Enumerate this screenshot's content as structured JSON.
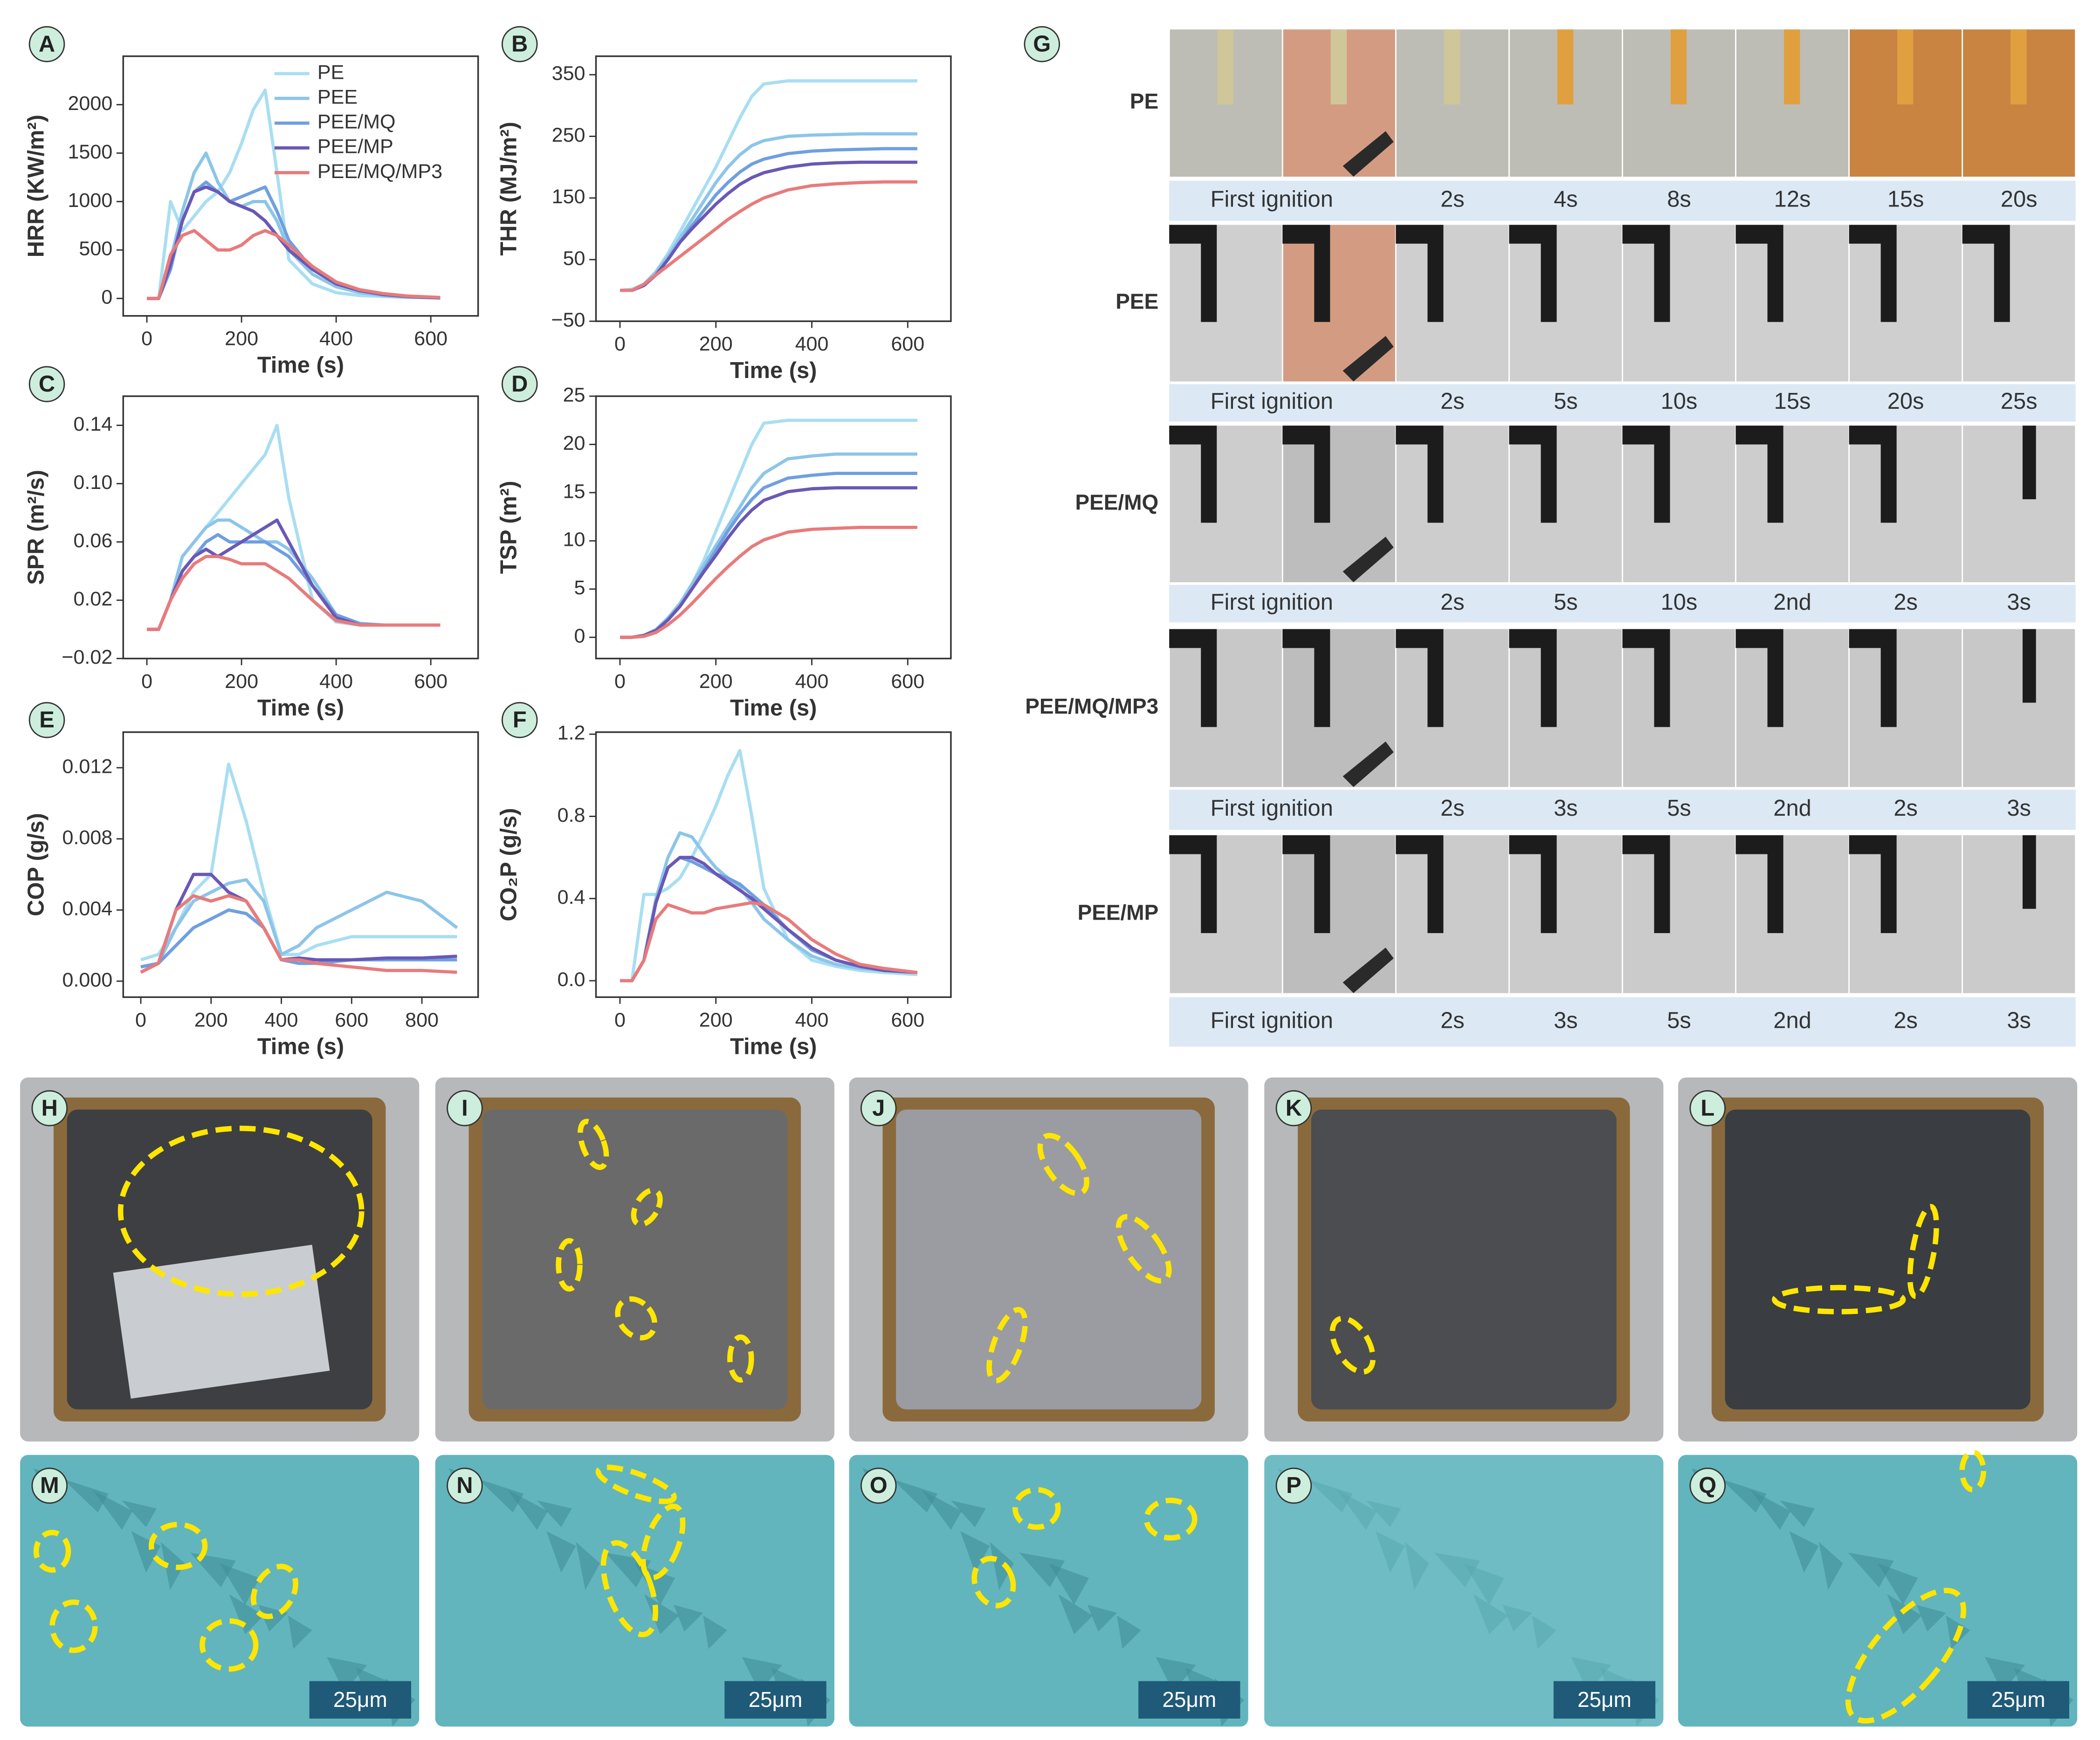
{
  "chart_data": [
    {
      "type": "line",
      "panel": "A",
      "xlabel": "Time (s)",
      "ylabel": "HRR (KW/m²)",
      "x": [
        0,
        25,
        50,
        75,
        100,
        125,
        150,
        175,
        200,
        225,
        250,
        275,
        300,
        350,
        400,
        450,
        500,
        550,
        620
      ],
      "xlim": [
        -50,
        700
      ],
      "xticks": [
        0,
        200,
        400,
        600
      ],
      "ylim": [
        -180,
        2500
      ],
      "yticks": [
        0,
        500,
        1000,
        1500,
        2000
      ],
      "legend": "upper right",
      "series": [
        {
          "name": "PE",
          "color": "#a9def2",
          "values": [
            0,
            0,
            1000,
            700,
            850,
            1000,
            1100,
            1300,
            1600,
            1950,
            2150,
            1300,
            400,
            150,
            60,
            30,
            20,
            10,
            5
          ]
        },
        {
          "name": "PEE",
          "color": "#8cc5e9",
          "values": [
            0,
            0,
            400,
            900,
            1300,
            1500,
            1200,
            1000,
            950,
            1000,
            1000,
            800,
            500,
            250,
            120,
            60,
            30,
            15,
            5
          ]
        },
        {
          "name": "PEE/MQ",
          "color": "#6f9fe0",
          "values": [
            0,
            0,
            300,
            800,
            1100,
            1200,
            1100,
            1000,
            1050,
            1100,
            1150,
            900,
            600,
            300,
            150,
            80,
            40,
            20,
            5
          ]
        },
        {
          "name": "PEE/MP",
          "color": "#6a58b6",
          "values": [
            0,
            0,
            350,
            800,
            1100,
            1150,
            1100,
            1000,
            950,
            900,
            800,
            650,
            500,
            300,
            150,
            80,
            40,
            20,
            5
          ]
        },
        {
          "name": "PEE/MQ/MP3",
          "color": "#e87b7b",
          "values": [
            0,
            0,
            450,
            650,
            700,
            600,
            500,
            500,
            550,
            650,
            700,
            650,
            550,
            330,
            170,
            90,
            50,
            25,
            10
          ]
        }
      ]
    },
    {
      "type": "line",
      "panel": "B",
      "xlabel": "Time (s)",
      "ylabel": "THR (MJ/m²)",
      "x": [
        0,
        25,
        50,
        75,
        100,
        125,
        150,
        175,
        200,
        225,
        250,
        275,
        300,
        350,
        400,
        450,
        500,
        550,
        620
      ],
      "xlim": [
        -50,
        690
      ],
      "xticks": [
        0,
        200,
        400,
        600
      ],
      "ylim": [
        -50,
        380
      ],
      "yticks": [
        {
          "value": -50,
          "label": "−50"
        },
        50,
        150,
        250,
        350
      ],
      "series": [
        {
          "color": "#a9def2",
          "values": [
            0,
            2,
            10,
            30,
            60,
            95,
            130,
            165,
            200,
            240,
            280,
            315,
            335,
            340,
            340,
            340,
            340,
            340,
            340
          ]
        },
        {
          "color": "#8cc5e9",
          "values": [
            0,
            0,
            10,
            30,
            55,
            85,
            115,
            145,
            175,
            200,
            220,
            235,
            243,
            250,
            252,
            253,
            254,
            254,
            254
          ]
        },
        {
          "color": "#6f9fe0",
          "values": [
            0,
            0,
            8,
            25,
            50,
            78,
            105,
            130,
            155,
            175,
            192,
            205,
            213,
            222,
            226,
            228,
            229,
            230,
            230
          ]
        },
        {
          "color": "#6a58b6",
          "values": [
            0,
            0,
            8,
            25,
            50,
            78,
            100,
            120,
            140,
            157,
            172,
            183,
            191,
            200,
            205,
            207,
            208,
            208,
            208
          ]
        },
        {
          "color": "#e87b7b",
          "values": [
            0,
            0,
            10,
            25,
            40,
            55,
            70,
            85,
            100,
            115,
            128,
            140,
            150,
            163,
            170,
            173,
            175,
            176,
            176
          ]
        }
      ]
    },
    {
      "type": "line",
      "panel": "C",
      "xlabel": "Time (s)",
      "ylabel": "SPR (m²/s)",
      "x": [
        0,
        25,
        50,
        75,
        100,
        125,
        150,
        175,
        200,
        225,
        250,
        275,
        300,
        350,
        400,
        450,
        500,
        550,
        620
      ],
      "xlim": [
        -50,
        700
      ],
      "xticks": [
        0,
        200,
        400,
        600
      ],
      "ylim": [
        -0.02,
        0.16
      ],
      "yticks": [
        {
          "value": -0.02,
          "label": "−0.02"
        },
        0.02,
        0.06,
        {
          "value": 0.1,
          "label": "0.10"
        },
        0.14
      ],
      "series": [
        {
          "color": "#a9def2",
          "values": [
            0,
            0,
            0.02,
            0.05,
            0.06,
            0.07,
            0.08,
            0.09,
            0.1,
            0.11,
            0.12,
            0.14,
            0.09,
            0.02,
            0.005,
            0.003,
            0.003,
            0.003,
            0.003
          ]
        },
        {
          "color": "#8cc5e9",
          "values": [
            0,
            0,
            0.02,
            0.05,
            0.06,
            0.07,
            0.075,
            0.075,
            0.07,
            0.065,
            0.06,
            0.06,
            0.055,
            0.035,
            0.01,
            0.004,
            0.003,
            0.003,
            0.003
          ]
        },
        {
          "color": "#6f9fe0",
          "values": [
            0,
            0,
            0.02,
            0.04,
            0.05,
            0.06,
            0.065,
            0.06,
            0.06,
            0.06,
            0.06,
            0.055,
            0.05,
            0.03,
            0.01,
            0.004,
            0.003,
            0.003,
            0.003
          ]
        },
        {
          "color": "#6a58b6",
          "values": [
            0,
            0,
            0.02,
            0.04,
            0.05,
            0.055,
            0.05,
            0.055,
            0.06,
            0.065,
            0.07,
            0.075,
            0.06,
            0.03,
            0.008,
            0.003,
            0.003,
            0.003,
            0.003
          ]
        },
        {
          "color": "#e87b7b",
          "values": [
            0,
            0,
            0.02,
            0.035,
            0.045,
            0.05,
            0.05,
            0.048,
            0.045,
            0.045,
            0.045,
            0.04,
            0.035,
            0.02,
            0.006,
            0.003,
            0.003,
            0.003,
            0.003
          ]
        }
      ]
    },
    {
      "type": "line",
      "panel": "D",
      "xlabel": "Time (s)",
      "ylabel": "TSP (m²)",
      "x": [
        0,
        25,
        50,
        75,
        100,
        125,
        150,
        175,
        200,
        225,
        250,
        275,
        300,
        350,
        400,
        450,
        500,
        550,
        620
      ],
      "xlim": [
        -50,
        690
      ],
      "xticks": [
        0,
        200,
        400,
        600
      ],
      "ylim": [
        -2.2,
        25
      ],
      "yticks": [
        0,
        5,
        10,
        15,
        20,
        25
      ],
      "series": [
        {
          "color": "#a9def2",
          "values": [
            0,
            0,
            0.2,
            0.8,
            2,
            3.5,
            5.5,
            8,
            11,
            14,
            17,
            20,
            22.2,
            22.5,
            22.5,
            22.5,
            22.5,
            22.5,
            22.5
          ]
        },
        {
          "color": "#8cc5e9",
          "values": [
            0,
            0,
            0.2,
            0.8,
            2,
            3.5,
            5.5,
            7.5,
            9.5,
            11.5,
            13.5,
            15.5,
            17,
            18.5,
            18.8,
            19,
            19,
            19,
            19
          ]
        },
        {
          "color": "#6f9fe0",
          "values": [
            0,
            0,
            0.2,
            0.7,
            1.8,
            3.2,
            5,
            7,
            9,
            11,
            12.8,
            14.3,
            15.5,
            16.5,
            16.8,
            17,
            17,
            17,
            17
          ]
        },
        {
          "color": "#6a58b6",
          "values": [
            0,
            0,
            0.2,
            0.7,
            1.8,
            3.2,
            5,
            6.8,
            8.5,
            10.3,
            11.9,
            13.2,
            14.2,
            15.1,
            15.4,
            15.5,
            15.5,
            15.5,
            15.5
          ]
        },
        {
          "color": "#e87b7b",
          "values": [
            0,
            0,
            0.1,
            0.5,
            1.3,
            2.3,
            3.5,
            4.8,
            6.1,
            7.3,
            8.4,
            9.4,
            10.1,
            10.9,
            11.2,
            11.3,
            11.4,
            11.4,
            11.4
          ]
        }
      ]
    },
    {
      "type": "line",
      "panel": "E",
      "xlabel": "Time (s)",
      "ylabel": "COP (g/s)",
      "x": [
        0,
        50,
        100,
        150,
        200,
        250,
        300,
        350,
        400,
        450,
        500,
        600,
        700,
        800,
        900
      ],
      "xlim": [
        -50,
        960
      ],
      "xticks": [
        0,
        200,
        400,
        600,
        800
      ],
      "ylim": [
        -0.0009,
        0.014
      ],
      "yticks": [
        {
          "value": 0,
          "label": "0.000"
        },
        0.004,
        0.008,
        0.012
      ],
      "series": [
        {
          "color": "#a9def2",
          "values": [
            0.0012,
            0.0015,
            0.003,
            0.005,
            0.006,
            0.0122,
            0.009,
            0.005,
            0.0015,
            0.0015,
            0.002,
            0.0025,
            0.0025,
            0.0025,
            0.0025
          ]
        },
        {
          "color": "#8cc5e9",
          "values": [
            0.0008,
            0.001,
            0.003,
            0.0045,
            0.005,
            0.0055,
            0.0057,
            0.0045,
            0.0015,
            0.002,
            0.003,
            0.004,
            0.005,
            0.0045,
            0.003
          ]
        },
        {
          "color": "#6f9fe0",
          "values": [
            0.0008,
            0.001,
            0.002,
            0.003,
            0.0035,
            0.004,
            0.0038,
            0.003,
            0.0012,
            0.001,
            0.001,
            0.0012,
            0.0012,
            0.0012,
            0.0012
          ]
        },
        {
          "color": "#6a58b6",
          "values": [
            0.0005,
            0.001,
            0.004,
            0.006,
            0.006,
            0.005,
            0.0045,
            0.003,
            0.0012,
            0.0013,
            0.0012,
            0.0012,
            0.0013,
            0.0013,
            0.0014
          ]
        },
        {
          "color": "#e87b7b",
          "values": [
            0.0005,
            0.001,
            0.004,
            0.0048,
            0.0045,
            0.0048,
            0.0045,
            0.003,
            0.0012,
            0.0012,
            0.001,
            0.0008,
            0.0006,
            0.0006,
            0.0005
          ]
        }
      ]
    },
    {
      "type": "line",
      "panel": "F",
      "xlabel": "Time (s)",
      "ylabel": "CO₂P (g/s)",
      "x": [
        0,
        25,
        50,
        75,
        100,
        125,
        150,
        175,
        200,
        225,
        250,
        275,
        300,
        350,
        400,
        450,
        500,
        550,
        620
      ],
      "xlim": [
        -50,
        690
      ],
      "xticks": [
        0,
        200,
        400,
        600
      ],
      "ylim": [
        -0.08,
        1.21
      ],
      "yticks": [
        {
          "value": 0,
          "label": "0.0"
        },
        0.4,
        0.8,
        1.2
      ],
      "series": [
        {
          "color": "#a9def2",
          "values": [
            0,
            0,
            0.42,
            0.42,
            0.45,
            0.5,
            0.6,
            0.72,
            0.85,
            1.0,
            1.12,
            0.8,
            0.45,
            0.2,
            0.1,
            0.07,
            0.05,
            0.04,
            0.03
          ]
        },
        {
          "color": "#8cc5e9",
          "values": [
            0,
            0,
            0.1,
            0.4,
            0.6,
            0.72,
            0.7,
            0.62,
            0.55,
            0.5,
            0.45,
            0.38,
            0.3,
            0.2,
            0.12,
            0.08,
            0.06,
            0.05,
            0.04
          ]
        },
        {
          "color": "#6f9fe0",
          "values": [
            0,
            0,
            0.1,
            0.38,
            0.55,
            0.6,
            0.58,
            0.55,
            0.52,
            0.5,
            0.47,
            0.42,
            0.37,
            0.25,
            0.15,
            0.1,
            0.07,
            0.05,
            0.04
          ]
        },
        {
          "color": "#6a58b6",
          "values": [
            0,
            0,
            0.1,
            0.38,
            0.55,
            0.6,
            0.6,
            0.57,
            0.52,
            0.48,
            0.44,
            0.4,
            0.35,
            0.25,
            0.16,
            0.1,
            0.07,
            0.05,
            0.04
          ]
        },
        {
          "color": "#e87b7b",
          "values": [
            0,
            0,
            0.1,
            0.3,
            0.37,
            0.35,
            0.33,
            0.33,
            0.35,
            0.36,
            0.37,
            0.38,
            0.37,
            0.3,
            0.2,
            0.13,
            0.08,
            0.06,
            0.04
          ]
        }
      ]
    }
  ],
  "photo_grid": {
    "panel": "G",
    "rows": [
      {
        "label": "PE",
        "captions": [
          "First ignition",
          "2s",
          "4s",
          "8s",
          "12s",
          "15s",
          "20s"
        ]
      },
      {
        "label": "PEE",
        "captions": [
          "First ignition",
          "2s",
          "5s",
          "10s",
          "15s",
          "20s",
          "25s"
        ]
      },
      {
        "label": "PEE/MQ",
        "captions": [
          "First ignition",
          "2s",
          "5s",
          "10s",
          "2nd",
          "2s",
          "3s"
        ]
      },
      {
        "label": "PEE/MQ/MP3",
        "captions": [
          "First ignition",
          "2s",
          "3s",
          "5s",
          "2nd",
          "2s",
          "3s"
        ]
      },
      {
        "label": "PEE/MP",
        "captions": [
          "First ignition",
          "2s",
          "3s",
          "5s",
          "2nd",
          "2s",
          "3s"
        ]
      }
    ]
  },
  "char_photos": [
    {
      "panel": "H"
    },
    {
      "panel": "I"
    },
    {
      "panel": "J"
    },
    {
      "panel": "K"
    },
    {
      "panel": "L"
    }
  ],
  "sem_images": [
    {
      "panel": "M",
      "scale_bar": "25μm"
    },
    {
      "panel": "N",
      "scale_bar": "25μm"
    },
    {
      "panel": "O",
      "scale_bar": "25μm"
    },
    {
      "panel": "P",
      "scale_bar": "25μm"
    },
    {
      "panel": "Q",
      "scale_bar": "25μm"
    }
  ]
}
